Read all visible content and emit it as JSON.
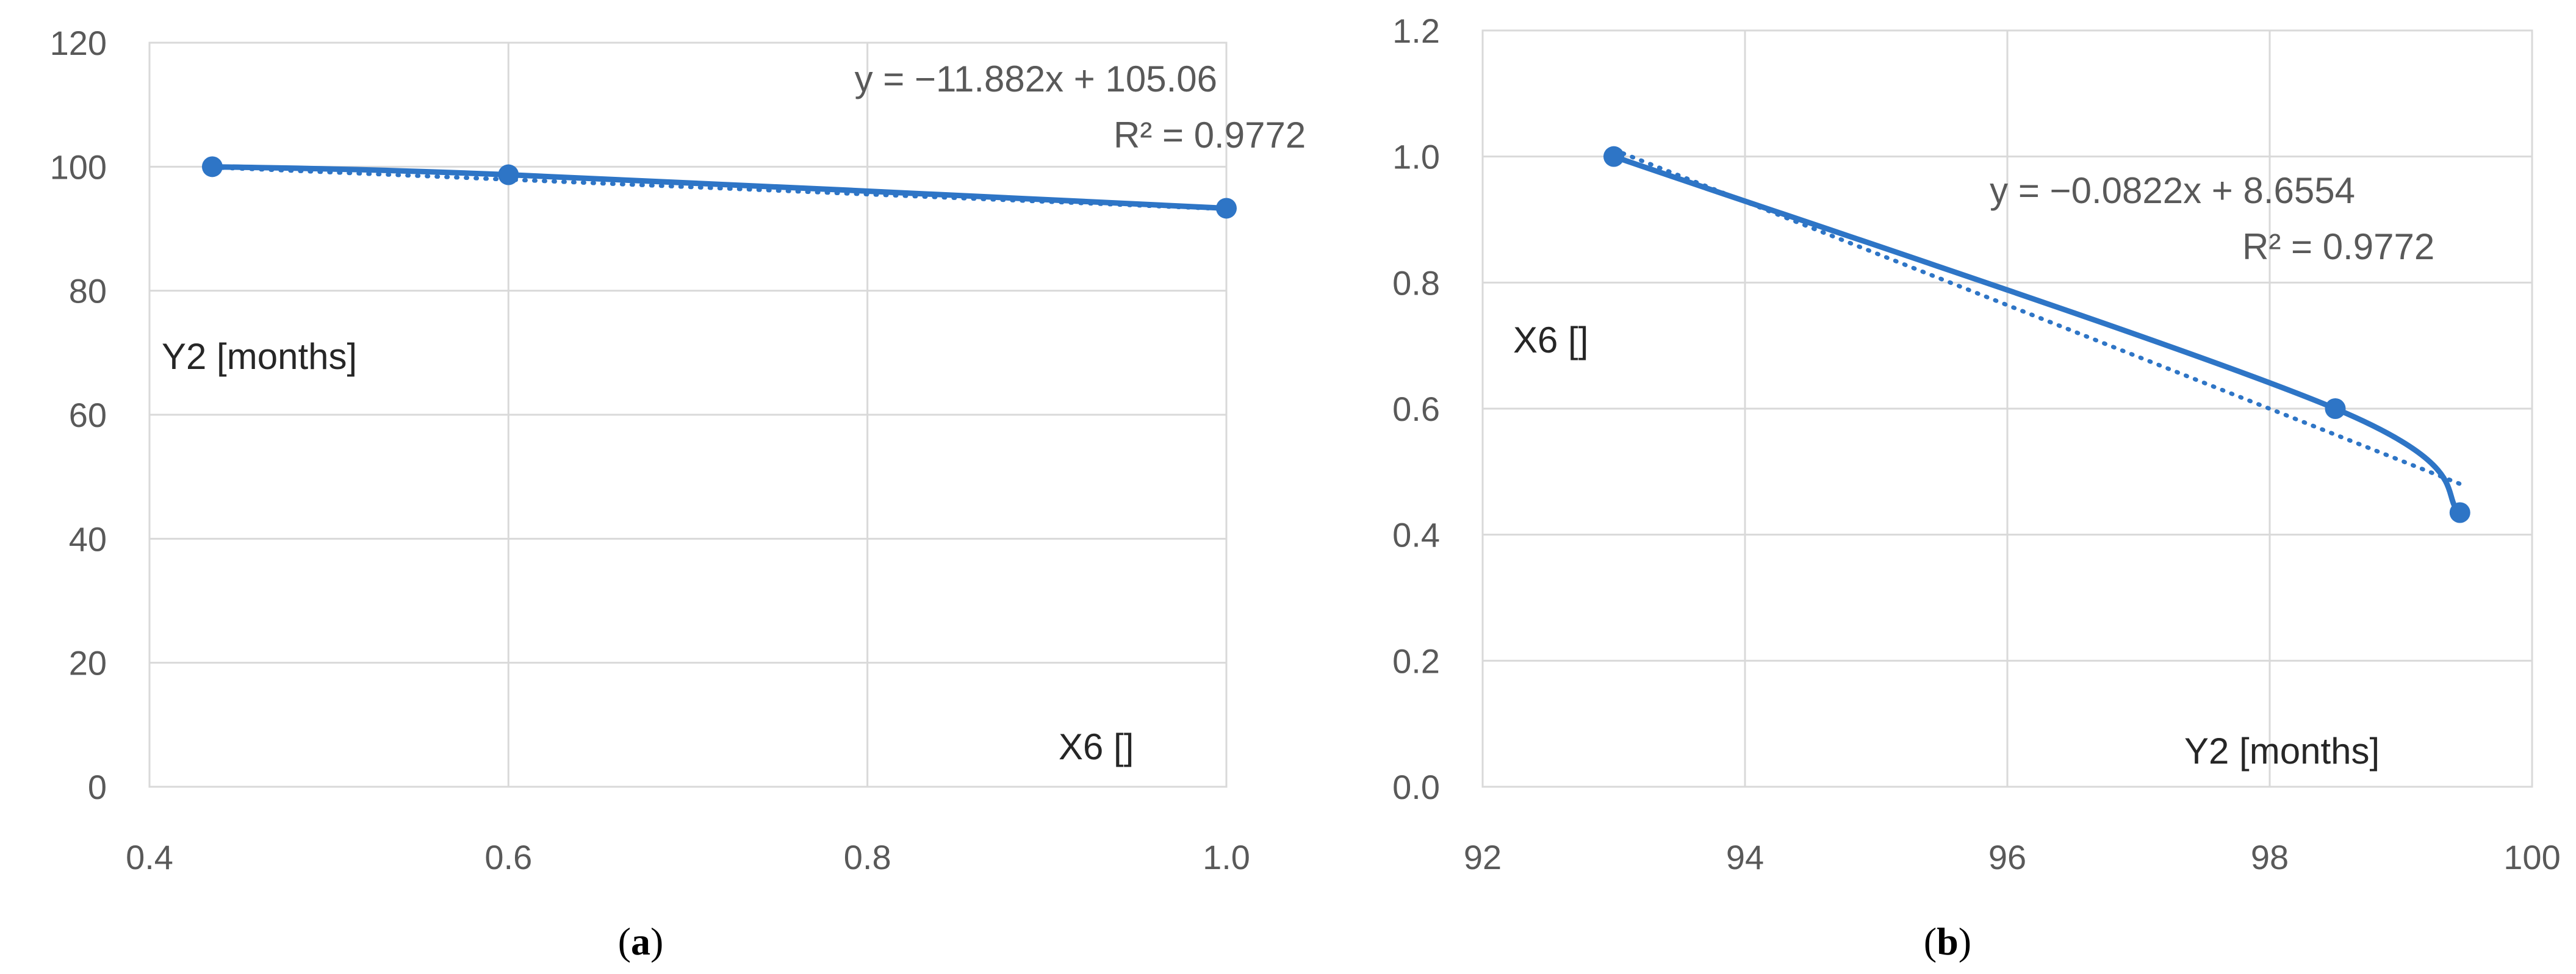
{
  "colors": {
    "series": "#2e75c6",
    "grid": "#d9d9d9",
    "tick_text": "#595959",
    "axis_title_text": "#262626"
  },
  "chart_data": [
    {
      "type": "scatter",
      "panel_label": "a",
      "xlabel": "X6 []",
      "ylabel": "Y2 [months]",
      "xlim": [
        0.4,
        1.0
      ],
      "ylim": [
        0,
        120
      ],
      "x_ticks": [
        "0.4",
        "0.6",
        "0.8",
        "1.0"
      ],
      "y_ticks": [
        "0",
        "20",
        "40",
        "60",
        "80",
        "100",
        "120"
      ],
      "grid": true,
      "series": [
        {
          "x": [
            0.435,
            0.6,
            1.0
          ],
          "y": [
            100.0,
            98.7,
            93.3
          ],
          "style": "smoothed line with markers"
        }
      ],
      "trendline": {
        "kind": "linear",
        "slope": -11.882,
        "intercept": 105.06,
        "equation": "y = −11.882x + 105.06",
        "r_squared": "R² = 0.9772",
        "style": "dotted"
      }
    },
    {
      "type": "scatter",
      "panel_label": "b",
      "xlabel": "Y2 [months]",
      "ylabel": "X6 []",
      "xlim": [
        92,
        100
      ],
      "ylim": [
        0.0,
        1.2
      ],
      "x_ticks": [
        "92",
        "94",
        "96",
        "98",
        "100"
      ],
      "y_ticks": [
        "0.0",
        "0.2",
        "0.4",
        "0.6",
        "0.8",
        "1.0",
        "1.2"
      ],
      "grid": true,
      "series": [
        {
          "x": [
            93.0,
            98.5,
            99.45
          ],
          "y": [
            1.0,
            0.6,
            0.435
          ],
          "style": "smoothed line with markers"
        }
      ],
      "trendline": {
        "kind": "linear",
        "slope": -0.0822,
        "intercept": 8.6554,
        "equation": "y = −0.0822x + 8.6554",
        "r_squared": "R² = 0.9772",
        "style": "dotted"
      }
    }
  ]
}
